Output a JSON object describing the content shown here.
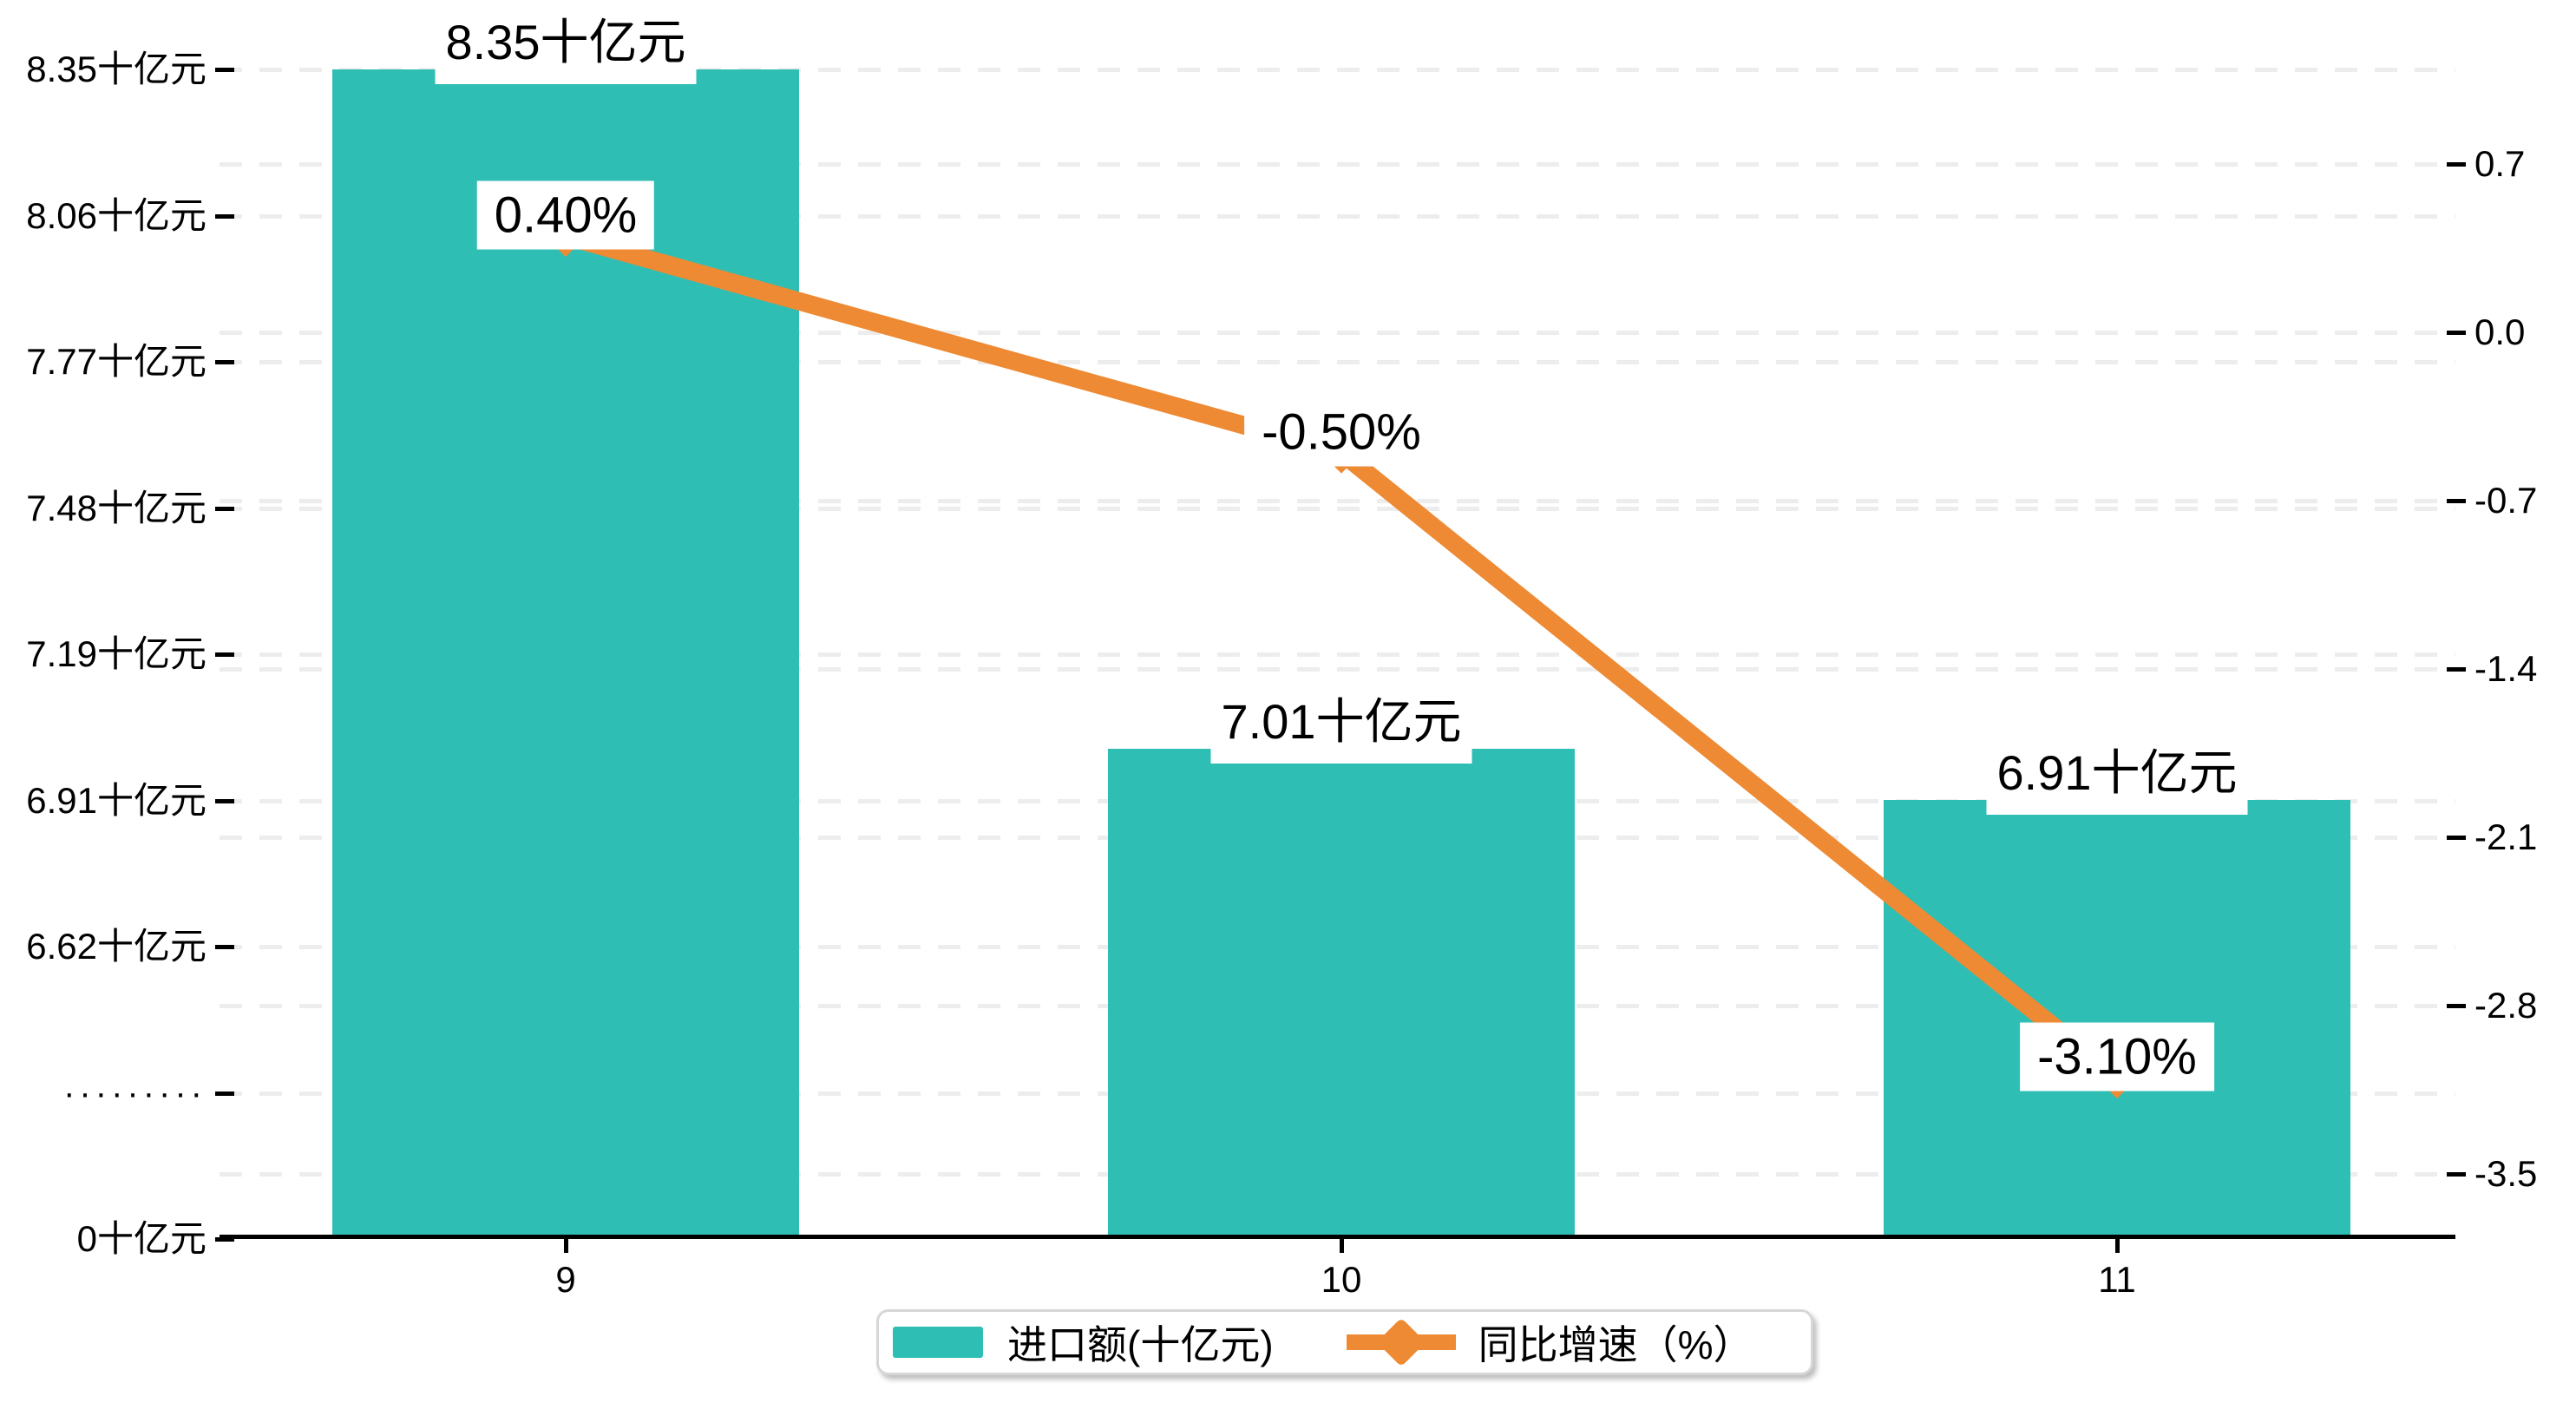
{
  "chart_data": {
    "type": "bar-line-combo",
    "categories": [
      "9",
      "10",
      "11"
    ],
    "series": [
      {
        "name": "进口额(十亿元)",
        "type": "bar",
        "color": "#2FBEB3",
        "values": [
          8.35,
          7.01,
          6.91
        ],
        "data_labels": [
          "8.35十亿元",
          "7.01十亿元",
          "6.91十亿元"
        ]
      },
      {
        "name": "同比增速（%）",
        "type": "line",
        "color": "#EE8A33",
        "values": [
          0.4,
          -0.5,
          -3.1
        ],
        "data_labels": [
          "0.40%",
          "-0.50%",
          "-3.10%"
        ]
      }
    ],
    "left_axis": {
      "tick_labels": [
        "8.35十亿元",
        "8.06十亿元",
        "7.77十亿元",
        "7.48十亿元",
        "7.19十亿元",
        "6.91十亿元",
        "6.62十亿元",
        "·········",
        "0十亿元"
      ],
      "tick_values": [
        8.35,
        8.06,
        7.77,
        7.48,
        7.19,
        6.91,
        6.62,
        null,
        0
      ],
      "has_break": true,
      "band_min": 6.62,
      "band_max": 8.35
    },
    "right_axis": {
      "tick_labels": [
        "0.7",
        "0.0",
        "-0.7",
        "-1.4",
        "-2.1",
        "-2.8",
        "-3.5"
      ],
      "tick_values": [
        0.7,
        0.0,
        -0.7,
        -1.4,
        -2.1,
        -2.8,
        -3.5
      ]
    },
    "legend": {
      "position": "bottom"
    },
    "grid": "dashed",
    "grid_color": "#ededed",
    "background": "#ffffff"
  }
}
